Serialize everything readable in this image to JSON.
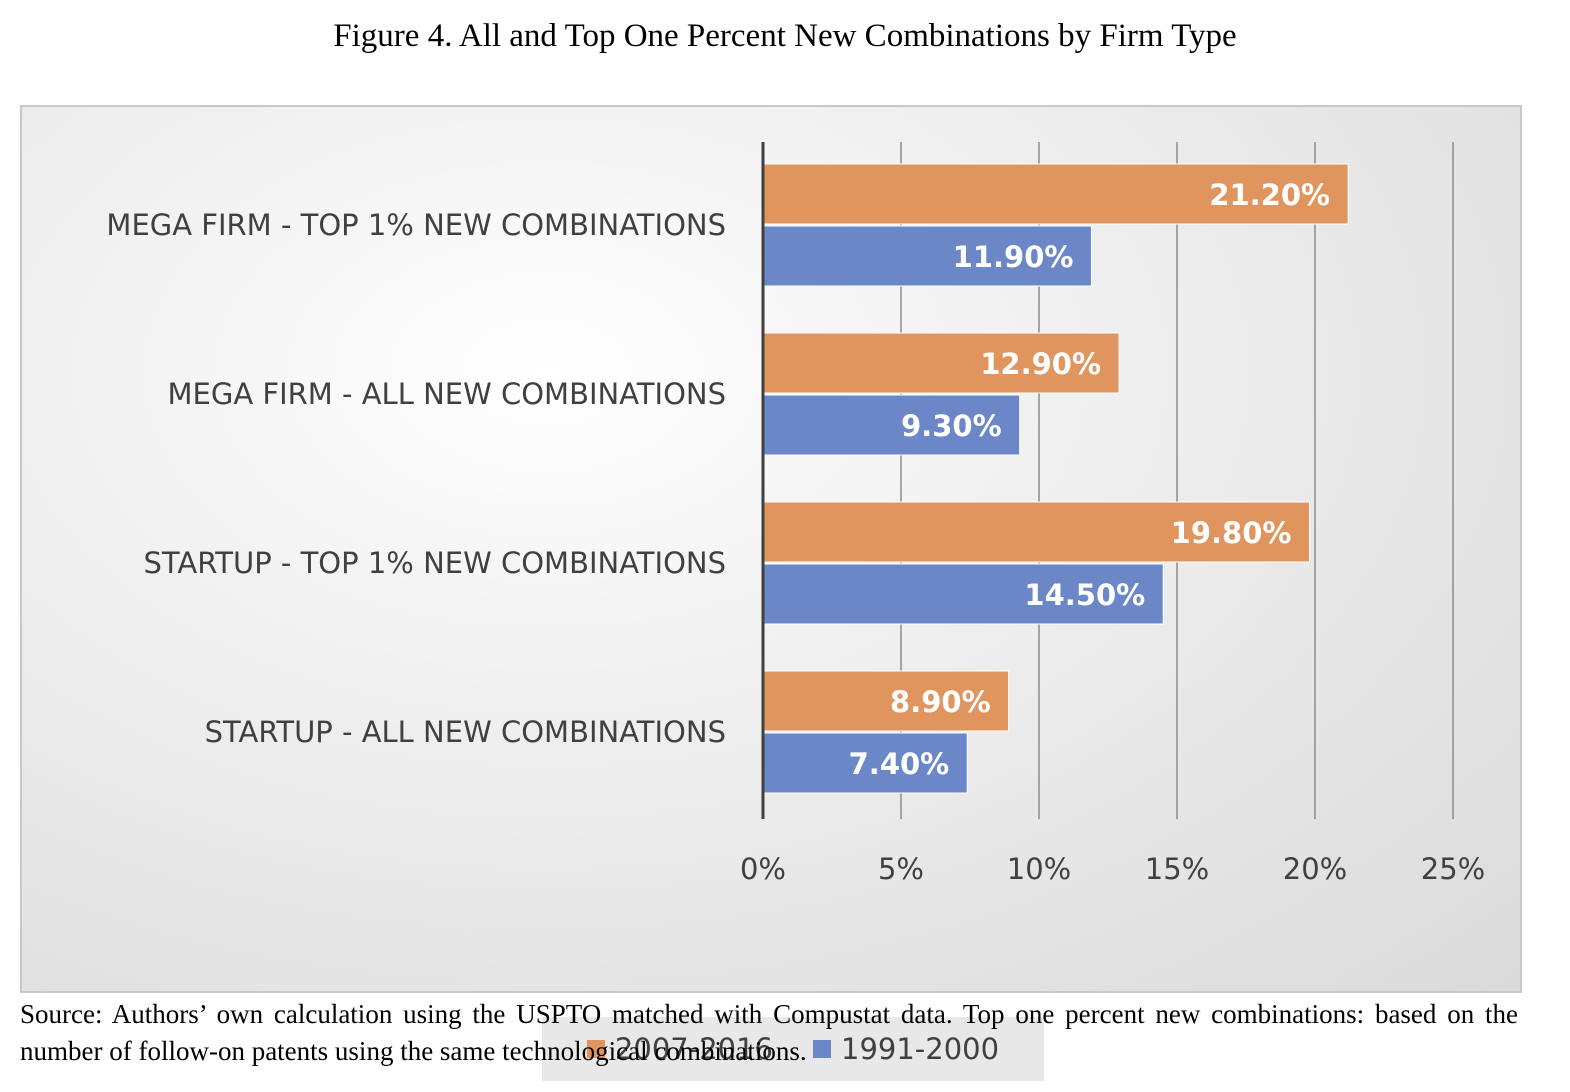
{
  "figure_title": "Figure 4. All and Top One Percent New Combinations by Firm Type",
  "source_note": "Source: Authors’ own calculation using the USPTO matched with Compustat data. Top one percent new combinations: based on the number of follow-on patents using the same technological combinations.",
  "chart_data": {
    "type": "bar",
    "orientation": "horizontal",
    "categories": [
      "MEGA FIRM - TOP 1% NEW COMBINATIONS",
      "MEGA FIRM - ALL NEW COMBINATIONS",
      "STARTUP - TOP 1% NEW COMBINATIONS",
      "STARTUP - ALL NEW COMBINATIONS"
    ],
    "series": [
      {
        "name": "2007-2016",
        "color": "#e0955f",
        "values": [
          21.2,
          12.9,
          19.8,
          8.9
        ],
        "labels": [
          "21.20%",
          "12.90%",
          "19.80%",
          "8.90%"
        ]
      },
      {
        "name": "1991-2000",
        "color": "#6b87c8",
        "values": [
          11.9,
          9.3,
          14.5,
          7.4
        ],
        "labels": [
          "11.90%",
          "9.30%",
          "14.50%",
          "7.40%"
        ]
      }
    ],
    "x_ticks": [
      "0%",
      "5%",
      "10%",
      "15%",
      "20%",
      "25%"
    ],
    "xlim": [
      0,
      25
    ],
    "grid": true,
    "legend_position": "bottom"
  }
}
